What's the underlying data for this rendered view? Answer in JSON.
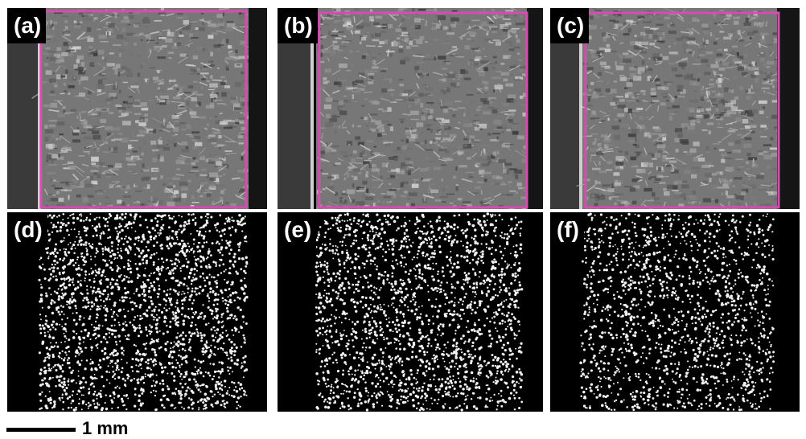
{
  "panels": [
    {
      "id": "a",
      "label": "(a)",
      "kind": "sem"
    },
    {
      "id": "b",
      "label": "(b)",
      "kind": "sem"
    },
    {
      "id": "c",
      "label": "(c)",
      "kind": "sem"
    },
    {
      "id": "d",
      "label": "(d)",
      "kind": "map"
    },
    {
      "id": "e",
      "label": "(e)",
      "kind": "map"
    },
    {
      "id": "f",
      "label": "(f)",
      "kind": "map"
    }
  ],
  "scale_bar": {
    "label": "1 mm"
  },
  "colors": {
    "outline": "#d94bb0",
    "background": "#000000",
    "dots": "#f2f2f2"
  }
}
